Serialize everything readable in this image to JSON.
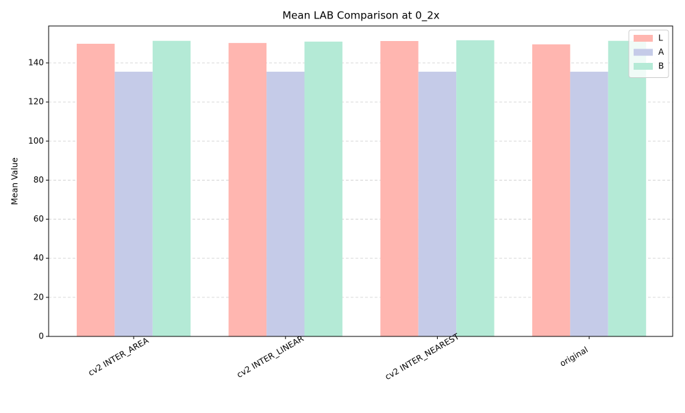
{
  "chart_data": {
    "type": "bar",
    "title": "Mean LAB Comparison at 0_2x",
    "y_label": "Mean Value",
    "categories": [
      "cv2 INTER_AREA",
      "cv2 INTER_LINEAR",
      "cv2 INTER_NEAREST",
      "original"
    ],
    "series": [
      {
        "name": "L",
        "color": "#ffb6b0",
        "values": [
          149.8,
          150.2,
          151.2,
          149.5
        ]
      },
      {
        "name": "A",
        "color": "#c5cbe8",
        "values": [
          135.5,
          135.5,
          135.5,
          135.5
        ]
      },
      {
        "name": "B",
        "color": "#b4ead6",
        "values": [
          151.3,
          150.9,
          151.6,
          151.3
        ]
      }
    ],
    "ylim": [
      0,
      158.9
    ],
    "yticks": [
      0,
      20,
      40,
      60,
      80,
      100,
      120,
      140
    ],
    "grid": true,
    "legend": "upper right"
  }
}
